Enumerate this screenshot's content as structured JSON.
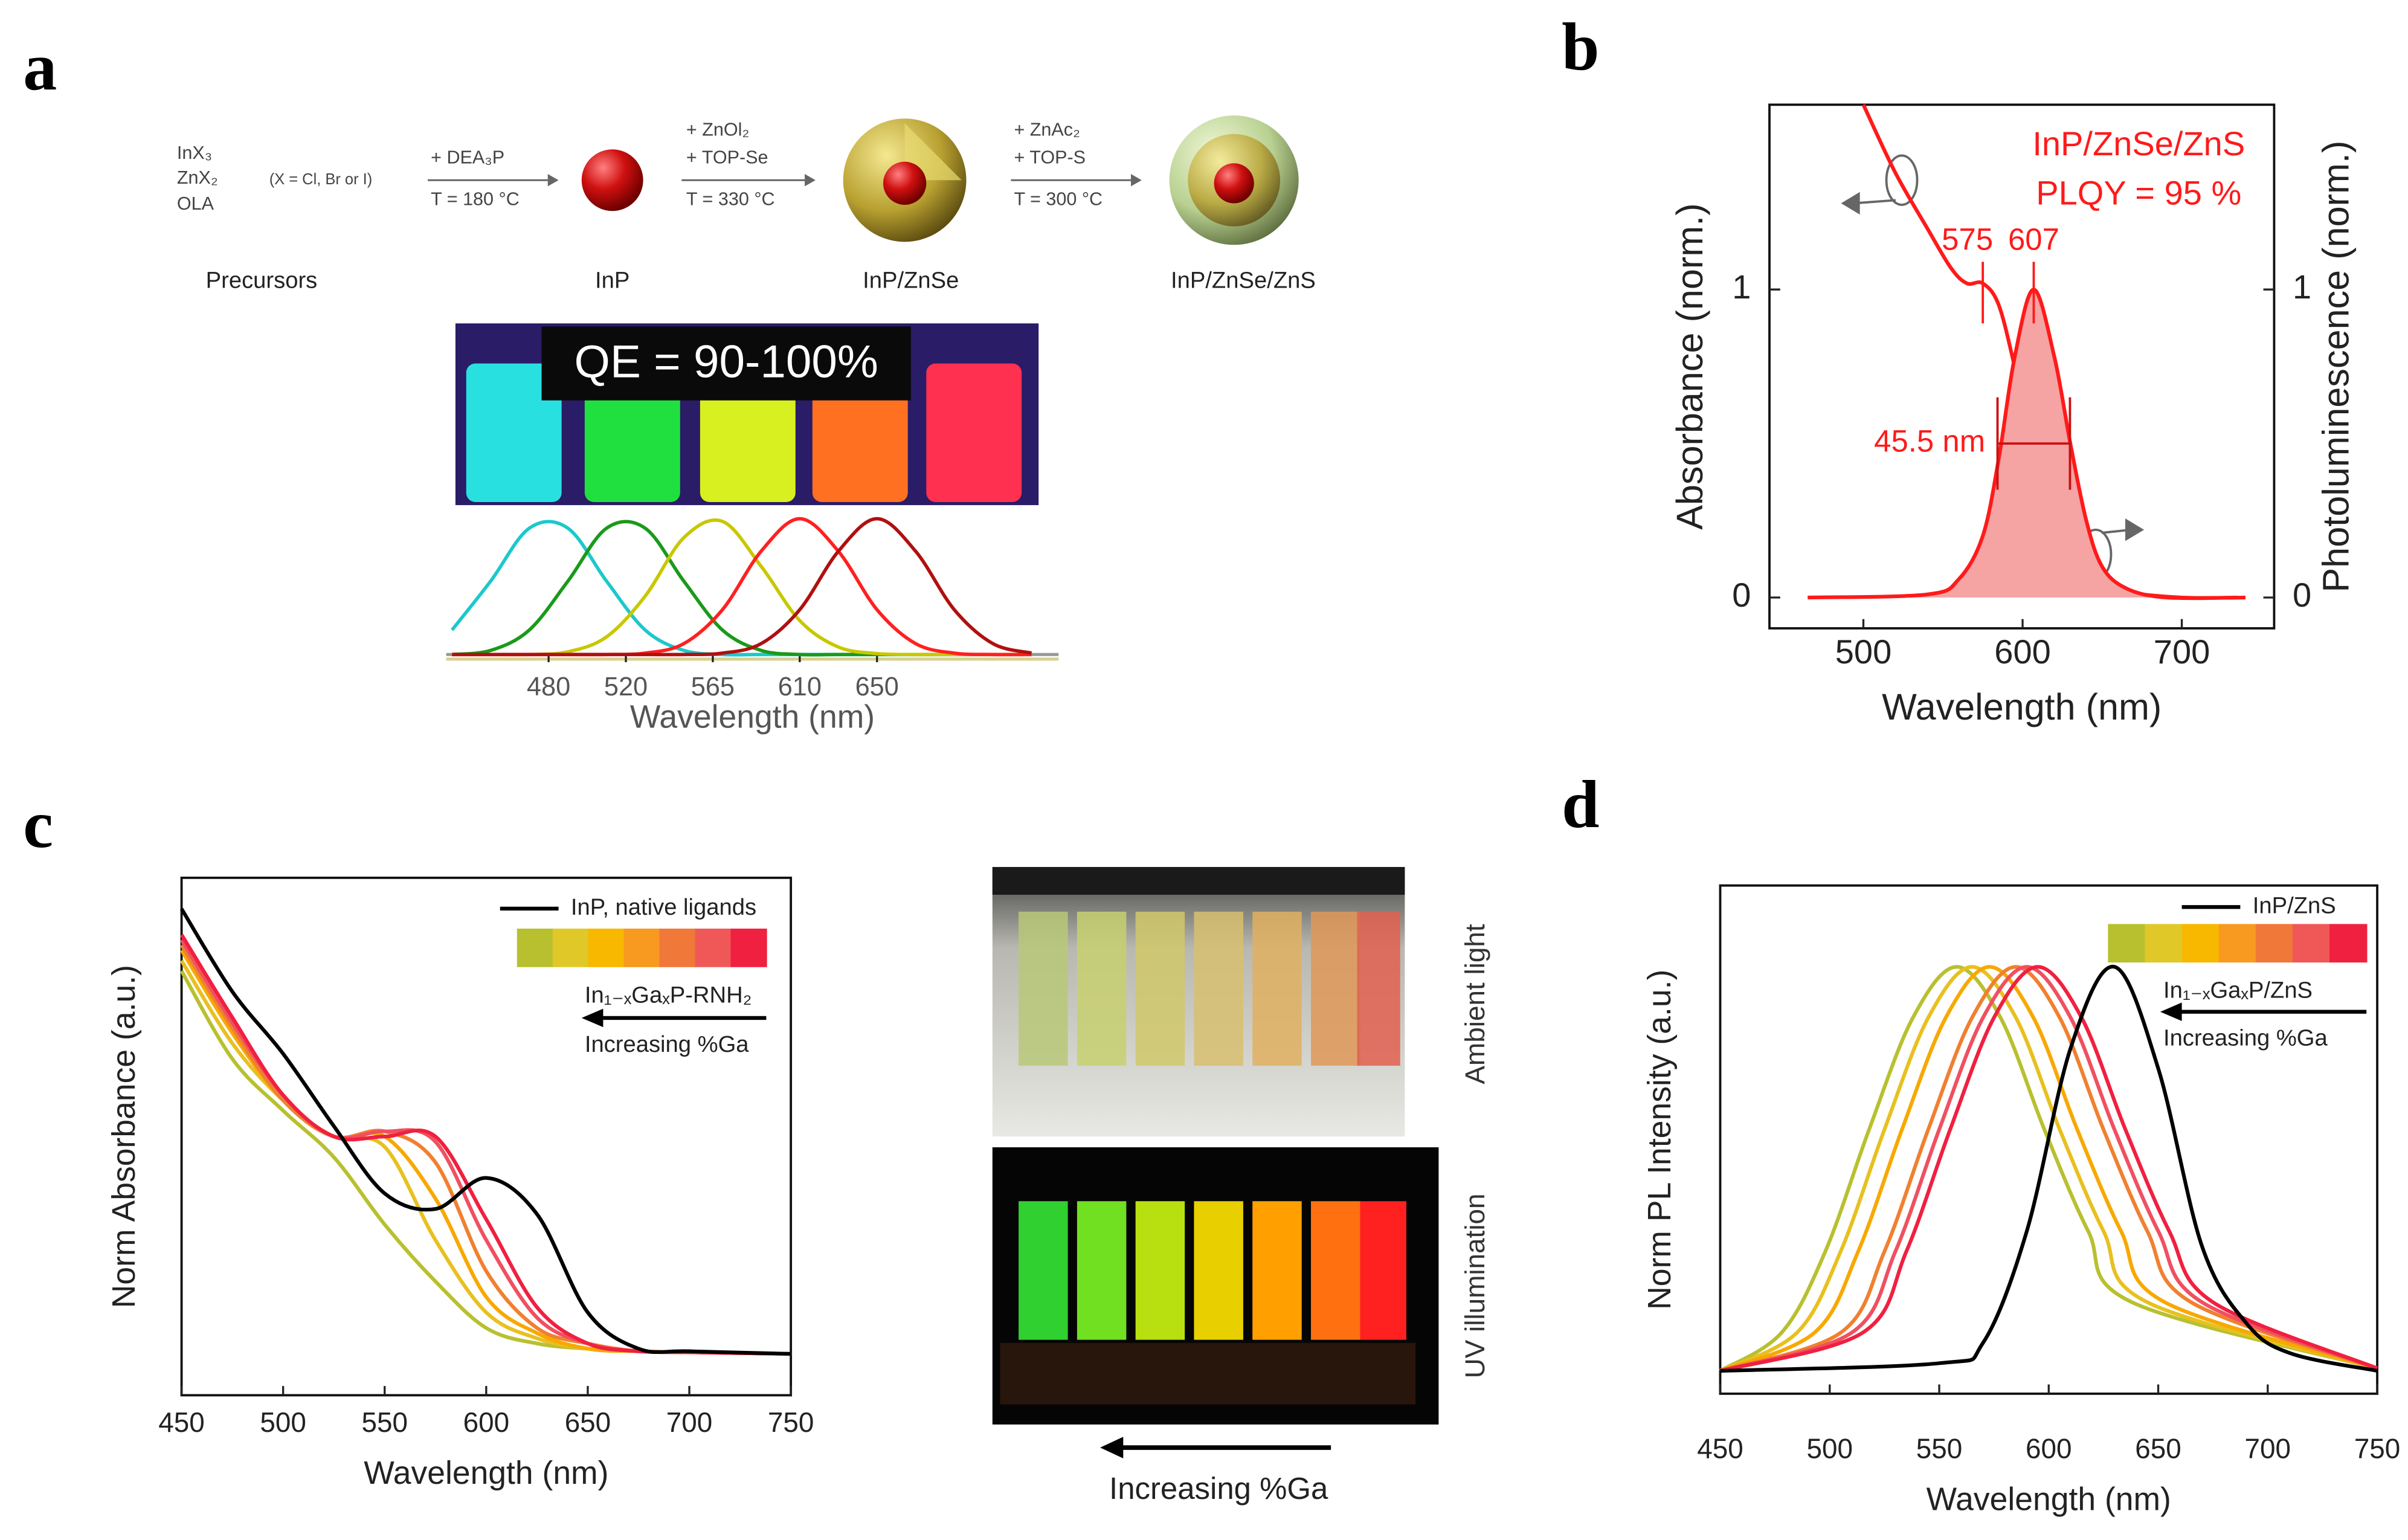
{
  "panel_labels": [
    "a",
    "b",
    "c",
    "d"
  ],
  "scheme": {
    "precursors": [
      "InX₃",
      "ZnX₂",
      "OLA"
    ],
    "halide_note": "(X = Cl, Br or I)",
    "steps": [
      [
        "+ DEA₃P",
        "T = 180 °C"
      ],
      [
        "+ ZnOl₂",
        "+ TOP-Se",
        "T = 330 °C"
      ],
      [
        "+ ZnAc₂",
        "+ TOP-S",
        "T = 300 °C"
      ]
    ],
    "products": [
      "Precursors",
      "InP",
      "InP/ZnSe",
      "InP/ZnSe/ZnS"
    ]
  },
  "photo_a": {
    "label": "QE = 90-100%"
  },
  "photos_c": {
    "ambient": "Ambient light",
    "uv": "UV illumination",
    "arrow_label": "Increasing %Ga"
  },
  "chart_data": [
    {
      "type": "line",
      "xlabel": "Wavelength (nm)",
      "xlim": [
        427,
        744
      ],
      "ylim": [
        0,
        1.1
      ],
      "xticks": [
        480,
        520,
        565,
        610,
        650
      ],
      "x": [
        430,
        450,
        470,
        490,
        510,
        530,
        550,
        570,
        590,
        610,
        630,
        650,
        670,
        690,
        710,
        730
      ],
      "series": [
        {
          "color": "#1cc8cc",
          "values": [
            0.18,
            0.54,
            0.93,
            0.93,
            0.54,
            0.18,
            0.03,
            0,
            0,
            0,
            0,
            0,
            0,
            0,
            0,
            0
          ]
        },
        {
          "color": "#1a9a1a",
          "values": [
            0,
            0.03,
            0.18,
            0.54,
            0.93,
            0.93,
            0.54,
            0.18,
            0.03,
            0,
            0,
            0,
            0,
            0,
            0,
            0
          ]
        },
        {
          "color": "#c8c800",
          "values": [
            0,
            0,
            0,
            0.02,
            0.13,
            0.43,
            0.86,
            0.98,
            0.65,
            0.25,
            0.055,
            0.007,
            0,
            0,
            0,
            0
          ]
        },
        {
          "color": "#ff2020",
          "values": [
            0,
            0,
            0,
            0,
            0,
            0.01,
            0.08,
            0.33,
            0.76,
            1,
            0.76,
            0.33,
            0.08,
            0.01,
            0,
            0
          ]
        },
        {
          "color": "#b01010",
          "values": [
            0,
            0,
            0,
            0,
            0,
            0,
            0,
            0.01,
            0.08,
            0.33,
            0.76,
            1,
            0.76,
            0.33,
            0.08,
            0.01
          ]
        }
      ]
    },
    {
      "type": "line",
      "xlabel": "Wavelength (nm)",
      "ylabel": "Absorbance (norm.)",
      "y2label": "Photoluminescence (norm.)",
      "xlim": [
        441,
        758
      ],
      "ylim": [
        -0.1,
        1.6
      ],
      "y2lim": [
        -0.1,
        1.6
      ],
      "xticks": [
        500,
        600,
        700
      ],
      "yticks": [
        0,
        1
      ],
      "y2ticks": [
        0,
        1
      ],
      "title": "InP/ZnSe/ZnS",
      "subtitle": "PLQY = 95 %",
      "peaks": [
        575,
        607
      ],
      "fwhm": {
        "value": 45.5,
        "label": "45.5 nm"
      },
      "series": [
        {
          "color": "#ff1a1a",
          "x": [
            500,
            520,
            540,
            555,
            565,
            575,
            585,
            595,
            605,
            615,
            625,
            640,
            660,
            700,
            740
          ],
          "values": [
            1.6,
            1.38,
            1.2,
            1.07,
            1.02,
            1.02,
            0.95,
            0.75,
            0.52,
            0.3,
            0.15,
            0.05,
            0.02,
            0,
            0
          ]
        },
        {
          "color": "#ff1a1a",
          "fill": "#f5a3a3",
          "axis": "y2",
          "x": [
            465,
            540,
            560,
            575,
            585,
            595,
            607,
            620,
            630,
            640,
            650,
            665,
            690,
            735
          ],
          "values": [
            0,
            0.01,
            0.06,
            0.2,
            0.45,
            0.78,
            1,
            0.78,
            0.5,
            0.25,
            0.1,
            0.03,
            0,
            0
          ]
        }
      ]
    },
    {
      "type": "line",
      "xlabel": "Wavelength (nm)",
      "ylabel": "Norm Absorbance (a.u.)",
      "xlim": [
        450,
        750
      ],
      "ylim": [
        0,
        1
      ],
      "xticks": [
        450,
        500,
        550,
        600,
        650,
        700,
        750
      ],
      "x": [
        450,
        475,
        500,
        525,
        550,
        575,
        600,
        625,
        650,
        675,
        700,
        750
      ],
      "series": [
        {
          "color": "#b8c030",
          "values": [
            0.82,
            0.65,
            0.55,
            0.46,
            0.33,
            0.22,
            0.13,
            0.1,
            0.09,
            0.085,
            0.083,
            0.08
          ]
        },
        {
          "color": "#e8c020",
          "values": [
            0.84,
            0.68,
            0.57,
            0.5,
            0.48,
            0.3,
            0.16,
            0.11,
            0.09,
            0.085,
            0.083,
            0.08
          ]
        },
        {
          "color": "#f8a800",
          "values": [
            0.86,
            0.7,
            0.57,
            0.5,
            0.5,
            0.38,
            0.19,
            0.12,
            0.09,
            0.085,
            0.083,
            0.08
          ]
        },
        {
          "color": "#f08030",
          "values": [
            0.87,
            0.71,
            0.57,
            0.5,
            0.51,
            0.45,
            0.24,
            0.13,
            0.1,
            0.085,
            0.083,
            0.08
          ]
        },
        {
          "color": "#f05060",
          "values": [
            0.88,
            0.72,
            0.58,
            0.5,
            0.51,
            0.49,
            0.3,
            0.15,
            0.1,
            0.085,
            0.083,
            0.08
          ]
        },
        {
          "color": "#f02040",
          "values": [
            0.89,
            0.73,
            0.58,
            0.5,
            0.5,
            0.5,
            0.34,
            0.17,
            0.1,
            0.085,
            0.083,
            0.08
          ]
        },
        {
          "name": "InP, native ligands",
          "color": "#000000",
          "values": [
            0.94,
            0.78,
            0.66,
            0.52,
            0.39,
            0.36,
            0.42,
            0.35,
            0.16,
            0.09,
            0.085,
            0.08
          ]
        }
      ],
      "colorbar": {
        "colors": [
          "#b8c030",
          "#e0c828",
          "#f8b800",
          "#f89a20",
          "#f07838",
          "#f05858",
          "#f02040"
        ],
        "label": "In₁₋ₓGaₓP-RNH₂",
        "arrow_label": "Increasing %Ga"
      }
    },
    {
      "type": "line",
      "xlabel": "Wavelength (nm)",
      "ylabel": "Norm PL Intensity (a.u.)",
      "xlim": [
        450,
        750
      ],
      "ylim": [
        0,
        1
      ],
      "xticks": [
        450,
        500,
        550,
        600,
        650,
        700,
        750
      ],
      "series": [
        {
          "color": "#b8c030",
          "x": [
            450,
            478,
            498,
            518,
            538,
            558,
            578,
            598,
            618,
            638,
            750
          ],
          "values": [
            0.045,
            0.12,
            0.28,
            0.52,
            0.74,
            0.84,
            0.74,
            0.52,
            0.32,
            0.18,
            0.05
          ]
        },
        {
          "color": "#e8c020",
          "x": [
            450,
            485,
            505,
            525,
            545,
            565,
            585,
            605,
            625,
            645,
            750
          ],
          "values": [
            0.045,
            0.12,
            0.28,
            0.52,
            0.74,
            0.84,
            0.74,
            0.52,
            0.32,
            0.18,
            0.05
          ]
        },
        {
          "color": "#f8a800",
          "x": [
            450,
            493,
            513,
            533,
            553,
            573,
            593,
            613,
            633,
            653,
            750
          ],
          "values": [
            0.045,
            0.12,
            0.28,
            0.52,
            0.74,
            0.84,
            0.74,
            0.52,
            0.32,
            0.18,
            0.05
          ]
        },
        {
          "color": "#f08030",
          "x": [
            450,
            505,
            525,
            545,
            565,
            585,
            605,
            625,
            645,
            665,
            750
          ],
          "values": [
            0.045,
            0.12,
            0.28,
            0.52,
            0.74,
            0.84,
            0.74,
            0.52,
            0.32,
            0.18,
            0.05
          ]
        },
        {
          "color": "#f05060",
          "x": [
            450,
            510,
            530,
            550,
            570,
            590,
            610,
            630,
            650,
            670,
            750
          ],
          "values": [
            0.045,
            0.12,
            0.28,
            0.52,
            0.74,
            0.84,
            0.74,
            0.52,
            0.32,
            0.18,
            0.05
          ]
        },
        {
          "color": "#f02040",
          "x": [
            450,
            515,
            535,
            555,
            575,
            595,
            615,
            635,
            655,
            675,
            750
          ],
          "values": [
            0.045,
            0.12,
            0.28,
            0.52,
            0.74,
            0.84,
            0.74,
            0.52,
            0.32,
            0.18,
            0.05
          ]
        },
        {
          "name": "InP/ZnS",
          "color": "#000000",
          "x": [
            450,
            550,
            570,
            590,
            610,
            630,
            650,
            670,
            690,
            710,
            750
          ],
          "values": [
            0.045,
            0.06,
            0.1,
            0.32,
            0.68,
            0.84,
            0.64,
            0.29,
            0.14,
            0.08,
            0.045
          ]
        }
      ],
      "colorbar": {
        "colors": [
          "#b8c030",
          "#e0c828",
          "#f8b800",
          "#f89a20",
          "#f07838",
          "#f05858",
          "#f02040"
        ],
        "label": "In₁₋ₓGaₓP/ZnS",
        "arrow_label": "Increasing %Ga"
      }
    }
  ]
}
